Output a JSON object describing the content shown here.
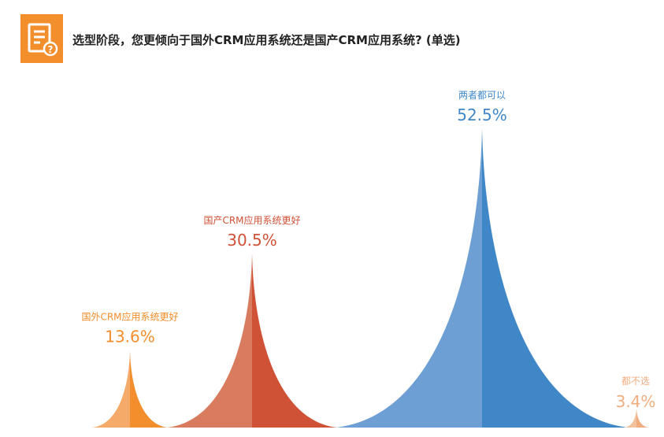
{
  "header": {
    "title": "选型阶段，您更倾向于国外CRM应用系统还是国产CRM应用系统? (单选)",
    "icon": "questionnaire-icon",
    "icon_color": "#f28e2b"
  },
  "chart_data": {
    "type": "bar",
    "style": "cusp-peak",
    "title": "选型阶段，您更倾向于国外CRM应用系统还是国产CRM应用系统? (单选)",
    "categories": [
      "国外CRM应用系统更好",
      "国产CRM应用系统更好",
      "两者都可以",
      "都不选"
    ],
    "values": [
      13.6,
      30.5,
      52.5,
      3.4
    ],
    "value_labels": [
      "13.6%",
      "30.5%",
      "52.5%",
      "3.4%"
    ],
    "unit": "%",
    "colors": [
      {
        "light": "#f5aa6a",
        "dark": "#f28e2b"
      },
      {
        "light": "#d97b5e",
        "dark": "#cf5237"
      },
      {
        "light": "#6e9fd4",
        "dark": "#3f87c7"
      },
      {
        "light": "#f5c39b",
        "dark": "#f0ad80"
      }
    ],
    "ylim": [
      0,
      52.5
    ],
    "grid": false,
    "legend": "none"
  }
}
